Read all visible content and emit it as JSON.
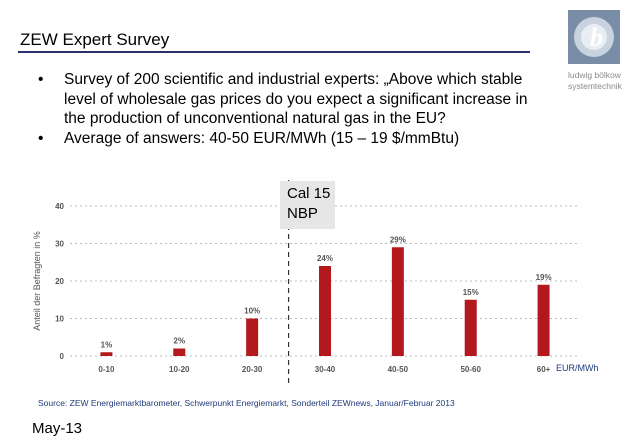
{
  "slide": {
    "title": "ZEW Expert Survey",
    "logo_text": [
      "ludwig bölkow",
      "systemtechnik"
    ],
    "logo_letter": "b",
    "bullets": [
      "Survey of 200 scientific and industrial experts: „Above which stable level of wholesale gas prices do you expect a significant increase in the production of unconventional natural gas in the EU?",
      "Average of answers:  40-50 EUR/MWh (15 – 19 $/mmBtu)"
    ],
    "bullet_symbol": "•",
    "callout": [
      "Cal 15",
      "NBP"
    ],
    "source": "Source: ZEW Energiemarktbarometer,  Schwerpunkt Energiemarkt,  Sonderteil ZEWnews, Januar/Februar 2013",
    "date": "May-13"
  },
  "colors": {
    "bar": "#b3191c",
    "axis_text": "#555555",
    "grid": "#bbbbbb",
    "title_rule": "#2d2d6b",
    "source_text": "#1f3a7a"
  },
  "chart_data": {
    "type": "bar",
    "categories": [
      "0-10",
      "10-20",
      "20-30",
      "30-40",
      "40-50",
      "50-60",
      "60+"
    ],
    "values": [
      1,
      2,
      10,
      24,
      29,
      15,
      19
    ],
    "data_labels": [
      "1%",
      "2%",
      "10%",
      "24%",
      "29%",
      "15%",
      "19%"
    ],
    "ylabel": "Anteil der Befragten in %",
    "xlabel": "EUR/MWh",
    "yticks": [
      0,
      10,
      20,
      30,
      40
    ],
    "ylim": [
      0,
      40
    ],
    "grid": true,
    "reference_line_between": [
      "20-30",
      "30-40"
    ]
  }
}
